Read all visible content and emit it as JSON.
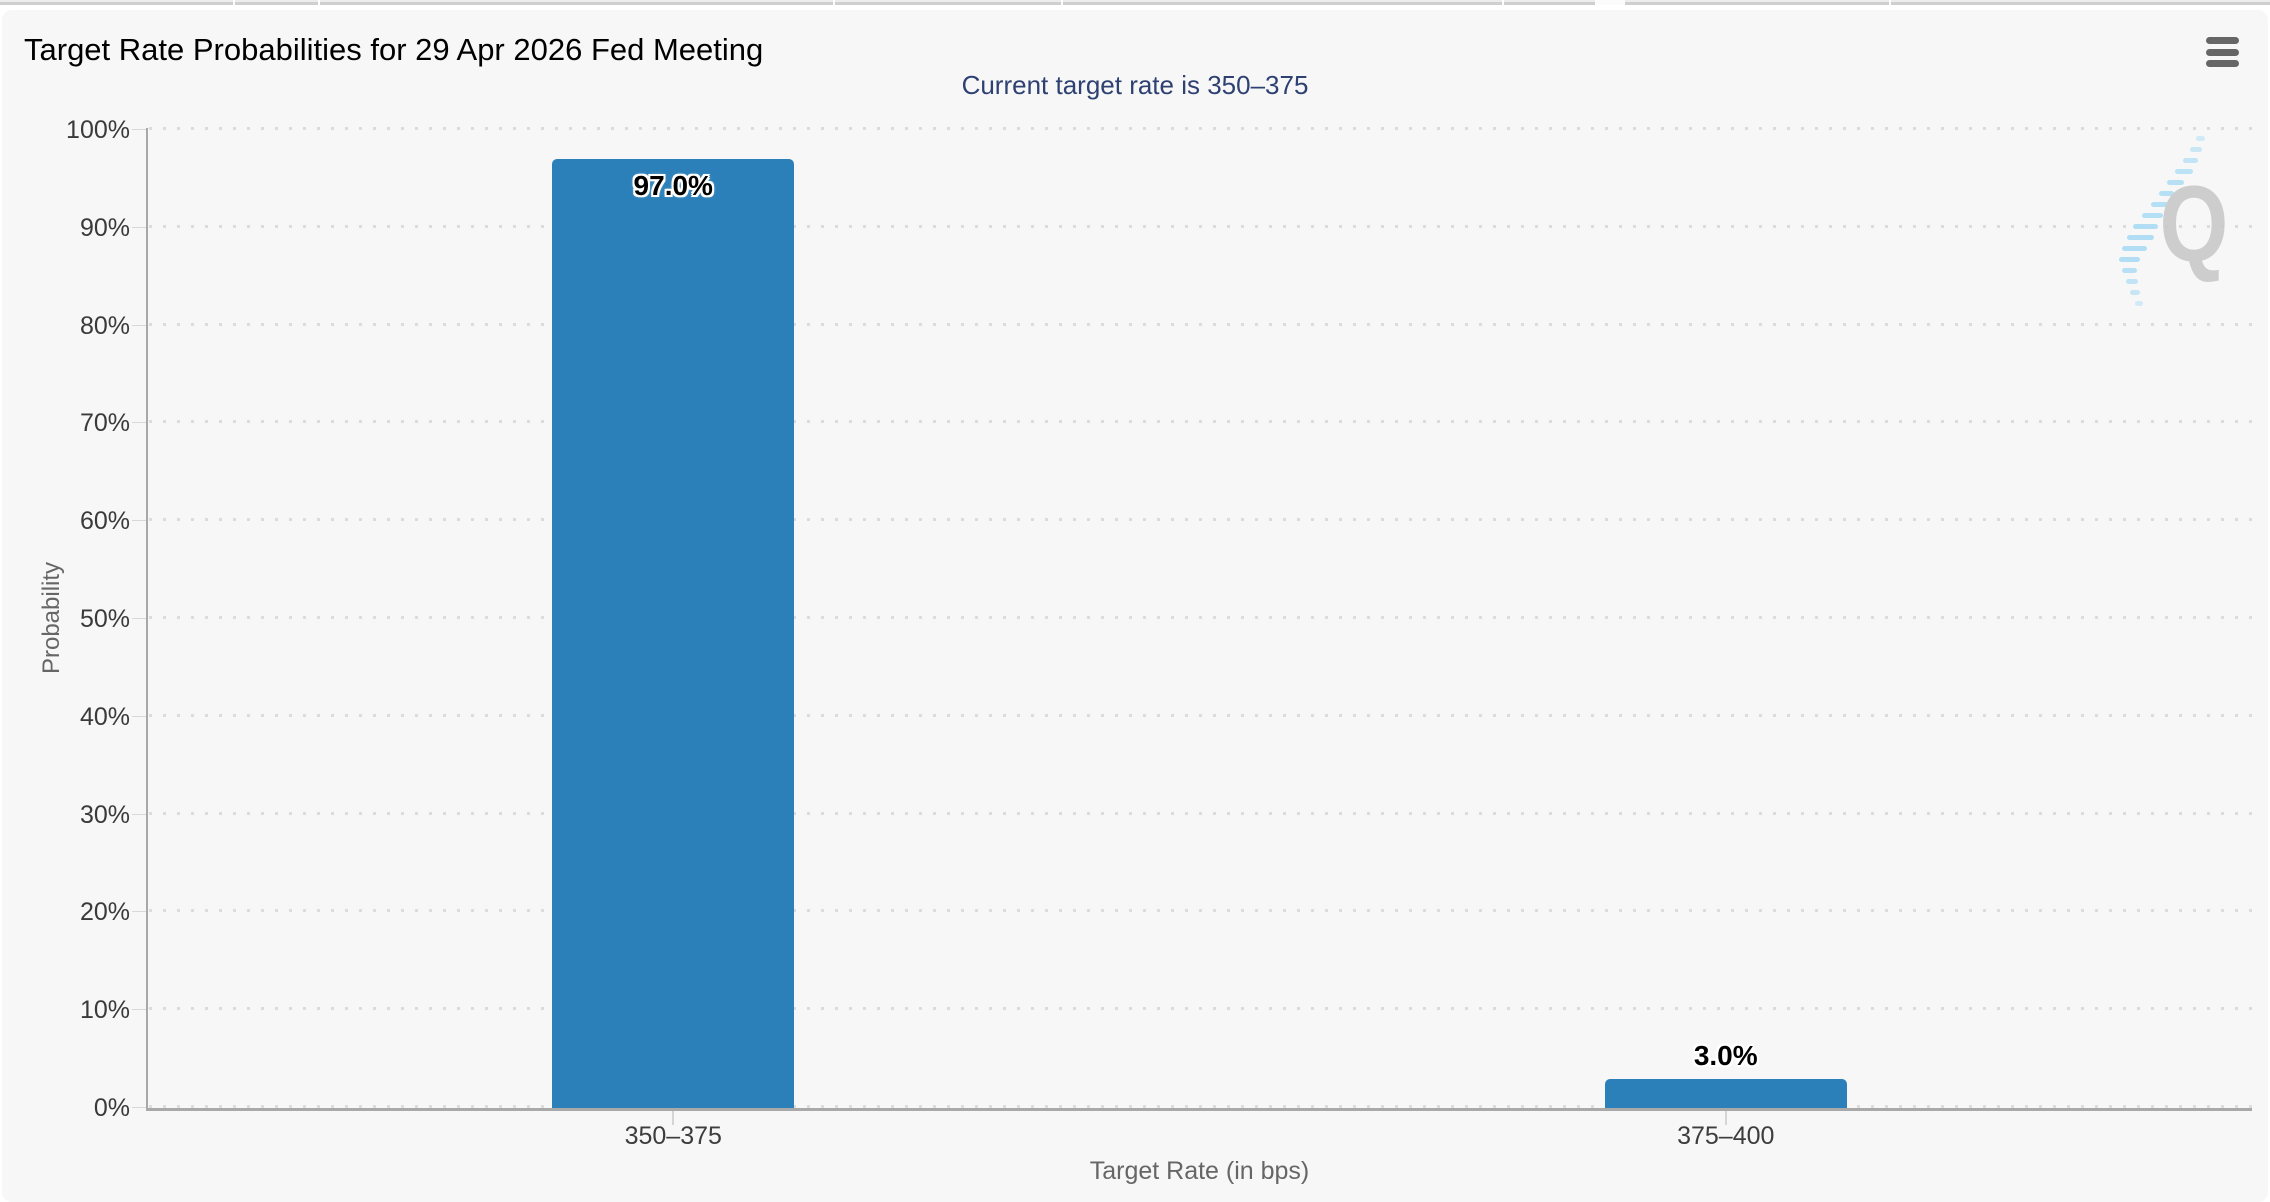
{
  "chart": {
    "title": "Target Rate Probabilities for 29 Apr 2026 Fed Meeting",
    "subtitle": "Current target rate is 350–375",
    "x_axis_title": "Target Rate (in bps)",
    "y_axis_title": "Probability",
    "menu_icon": "hamburger-icon",
    "watermark_letter": "Q",
    "colors": {
      "bar": "#2c80b9",
      "subtitle_text": "#2e4172",
      "card_background": "#f7f7f7",
      "grid": "#dcdcdc",
      "axis_line": "#a9a9a9",
      "watermark_gray": "#c9c9c9",
      "watermark_blue": "#aadcf5"
    }
  },
  "chart_data": {
    "type": "bar",
    "title": "Target Rate Probabilities for 29 Apr 2026 Fed Meeting",
    "subtitle": "Current target rate is 350–375",
    "categories": [
      "350–375",
      "375–400"
    ],
    "values": [
      97.0,
      3.0
    ],
    "value_labels": [
      "97.0%",
      "3.0%"
    ],
    "xlabel": "Target Rate (in bps)",
    "ylabel": "Probability",
    "ylim": [
      0,
      100
    ],
    "ytick_step": 10,
    "ytick_labels": [
      "0%",
      "10%",
      "20%",
      "30%",
      "40%",
      "50%",
      "60%",
      "70%",
      "80%",
      "90%",
      "100%"
    ],
    "grid": "horizontal-dotted",
    "legend": "none",
    "bar_color": "#2c80b9"
  }
}
